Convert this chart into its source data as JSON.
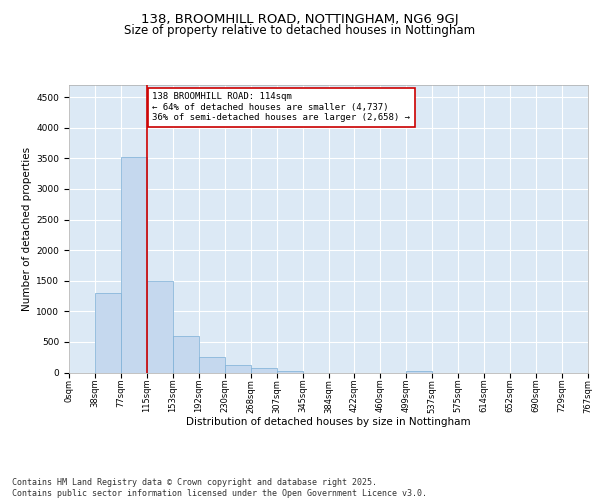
{
  "title_line1": "138, BROOMHILL ROAD, NOTTINGHAM, NG6 9GJ",
  "title_line2": "Size of property relative to detached houses in Nottingham",
  "xlabel": "Distribution of detached houses by size in Nottingham",
  "ylabel": "Number of detached properties",
  "bar_values": [
    0,
    1300,
    3530,
    1500,
    600,
    260,
    130,
    70,
    30,
    0,
    0,
    0,
    0,
    30,
    0,
    0,
    0,
    0,
    0,
    0
  ],
  "bar_labels": [
    "0sqm",
    "38sqm",
    "77sqm",
    "115sqm",
    "153sqm",
    "192sqm",
    "230sqm",
    "268sqm",
    "307sqm",
    "345sqm",
    "384sqm",
    "422sqm",
    "460sqm",
    "499sqm",
    "537sqm",
    "575sqm",
    "614sqm",
    "652sqm",
    "690sqm",
    "729sqm",
    "767sqm"
  ],
  "bar_color": "#c5d8ee",
  "bar_edge_color": "#7aaed6",
  "property_line_color": "#cc0000",
  "annotation_text": "138 BROOMHILL ROAD: 114sqm\n← 64% of detached houses are smaller (4,737)\n36% of semi-detached houses are larger (2,658) →",
  "annotation_box_color": "#ffffff",
  "annotation_box_edge_color": "#cc0000",
  "ylim": [
    0,
    4700
  ],
  "yticks": [
    0,
    500,
    1000,
    1500,
    2000,
    2500,
    3000,
    3500,
    4000,
    4500
  ],
  "background_color": "#dce9f5",
  "grid_color": "#ffffff",
  "footer_text": "Contains HM Land Registry data © Crown copyright and database right 2025.\nContains public sector information licensed under the Open Government Licence v3.0.",
  "title_fontsize": 9.5,
  "subtitle_fontsize": 8.5,
  "axis_label_fontsize": 7.5,
  "tick_fontsize": 6.5,
  "annotation_fontsize": 6.5,
  "footer_fontsize": 6
}
